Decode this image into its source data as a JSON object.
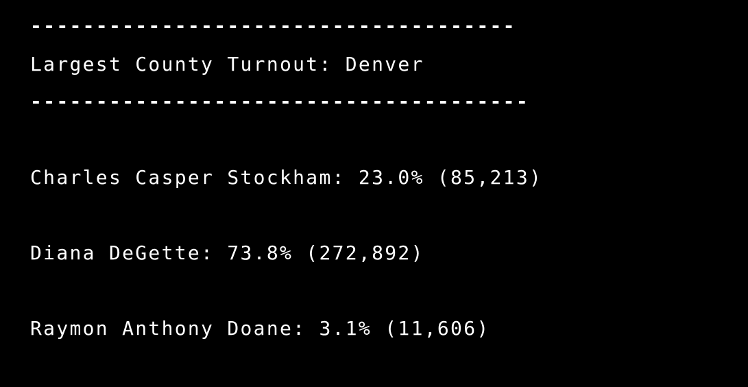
{
  "terminal": {
    "separator_top": "-------------------------------------",
    "largest_county_line": "Largest County Turnout: Denver",
    "separator_bottom": "--------------------------------------",
    "candidates": [
      {
        "text": "Charles Casper Stockham: 23.0% (85,213)"
      },
      {
        "text": "Diana DeGette: 73.8% (272,892)"
      },
      {
        "text": "Raymon Anthony Doane: 3.1% (11,606)"
      }
    ],
    "colors": {
      "background": "#000000",
      "text": "#ffffff"
    }
  }
}
